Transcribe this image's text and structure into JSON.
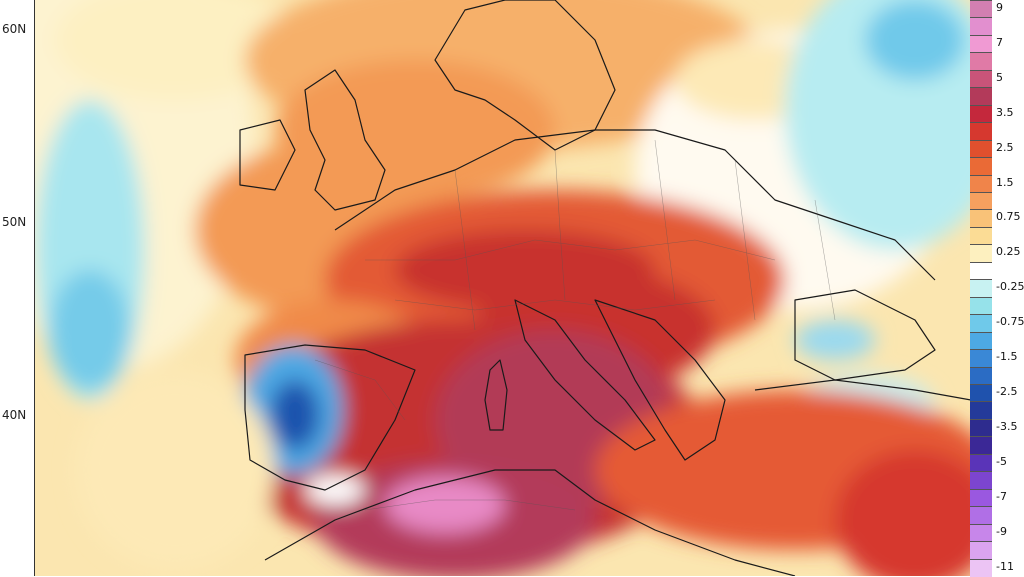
{
  "map": {
    "lat_labels": [
      "60N",
      "50N",
      "40N"
    ]
  },
  "legend": {
    "entries": [
      {
        "label": "9",
        "color": "#d27fb1"
      },
      {
        "label": "",
        "color": "#e28fcf"
      },
      {
        "label": "7",
        "color": "#f09ad3"
      },
      {
        "label": "",
        "color": "#e07aa6"
      },
      {
        "label": "5",
        "color": "#c95479"
      },
      {
        "label": "",
        "color": "#b33a5a"
      },
      {
        "label": "3.5",
        "color": "#c4283c"
      },
      {
        "label": "",
        "color": "#d6382f"
      },
      {
        "label": "2.5",
        "color": "#e0502e"
      },
      {
        "label": "",
        "color": "#ea6a36"
      },
      {
        "label": "1.5",
        "color": "#f0844a"
      },
      {
        "label": "",
        "color": "#f6a05f"
      },
      {
        "label": "0.75",
        "color": "#f9c278"
      },
      {
        "label": "",
        "color": "#fbdc95"
      },
      {
        "label": "0.25",
        "color": "#fdf0bf"
      },
      {
        "label": "",
        "color": "#ffffff"
      },
      {
        "label": "-0.25",
        "color": "#c8f2f2"
      },
      {
        "label": "",
        "color": "#96e2ea"
      },
      {
        "label": "-0.75",
        "color": "#6fc9ea"
      },
      {
        "label": "",
        "color": "#4da9e4"
      },
      {
        "label": "-1.5",
        "color": "#3a88d6"
      },
      {
        "label": "",
        "color": "#2b6cc4"
      },
      {
        "label": "-2.5",
        "color": "#1f52ad"
      },
      {
        "label": "",
        "color": "#243a9a"
      },
      {
        "label": "-3.5",
        "color": "#2e2c8e"
      },
      {
        "label": "",
        "color": "#3b2896"
      },
      {
        "label": "-5",
        "color": "#5a34b8"
      },
      {
        "label": "",
        "color": "#7c45cf"
      },
      {
        "label": "-7",
        "color": "#9a58e0"
      },
      {
        "label": "",
        "color": "#b06fe6"
      },
      {
        "label": "-9",
        "color": "#c786ea"
      },
      {
        "label": "",
        "color": "#dba4ef"
      },
      {
        "label": "-11",
        "color": "#ecc4f4"
      }
    ]
  }
}
